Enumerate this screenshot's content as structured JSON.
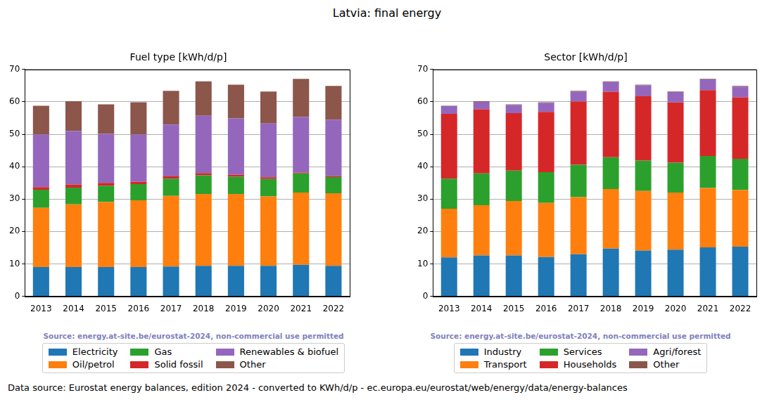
{
  "title": "Latvia: final energy",
  "footer": "Data source: Eurostat energy balances, edition 2024 - converted to KWh/d/p - ec.europa.eu/eurostat/web/energy/data/energy-balances",
  "chart_data": [
    {
      "type": "bar",
      "title": "Fuel type [kWh/d/p]",
      "annotation": "Source: energy.at-site.be/eurostat-2024, non-commercial use permitted",
      "categories": [
        "2013",
        "2014",
        "2015",
        "2016",
        "2017",
        "2018",
        "2019",
        "2020",
        "2021",
        "2022"
      ],
      "series": [
        {
          "name": "Electricity",
          "color": "#1f77b4",
          "values": [
            9.0,
            9.0,
            9.0,
            9.0,
            9.2,
            9.4,
            9.4,
            9.4,
            9.7,
            9.4
          ]
        },
        {
          "name": "Oil/petrol",
          "color": "#ff7f0e",
          "values": [
            18.3,
            19.4,
            20.1,
            20.6,
            21.8,
            22.2,
            22.2,
            21.4,
            22.3,
            22.4
          ]
        },
        {
          "name": "Gas",
          "color": "#2ca02c",
          "values": [
            5.6,
            5.1,
            5.0,
            5.0,
            5.3,
            5.7,
            5.3,
            5.4,
            5.9,
            5.0
          ]
        },
        {
          "name": "Solid fossil",
          "color": "#d62728",
          "values": [
            0.8,
            1.0,
            0.9,
            0.7,
            0.7,
            0.7,
            0.6,
            0.5,
            0.3,
            0.3
          ]
        },
        {
          "name": "Renewables & biofuel",
          "color": "#9467bd",
          "values": [
            16.2,
            16.5,
            15.1,
            14.6,
            16.0,
            17.7,
            17.4,
            16.6,
            17.1,
            17.4
          ]
        },
        {
          "name": "Other",
          "color": "#8c564b",
          "values": [
            8.9,
            9.2,
            9.1,
            10.0,
            10.4,
            10.6,
            10.4,
            9.9,
            11.8,
            10.4
          ]
        }
      ],
      "ylim": [
        0,
        70
      ],
      "yticks": [
        0,
        10,
        20,
        30,
        40,
        50,
        60,
        70
      ],
      "grid": "y",
      "stacked": true,
      "legend": "bottom"
    },
    {
      "type": "bar",
      "title": "Sector [kWh/d/p]",
      "annotation": "Source: energy.at-site.be/eurostat-2024, non-commercial use permitted",
      "categories": [
        "2013",
        "2014",
        "2015",
        "2016",
        "2017",
        "2018",
        "2019",
        "2020",
        "2021",
        "2022"
      ],
      "series": [
        {
          "name": "Industry",
          "color": "#1f77b4",
          "values": [
            12.0,
            12.6,
            12.6,
            12.1,
            13.0,
            14.7,
            14.1,
            14.4,
            15.1,
            15.3
          ]
        },
        {
          "name": "Transport",
          "color": "#ff7f0e",
          "values": [
            15.0,
            15.5,
            16.8,
            16.7,
            17.6,
            18.4,
            18.4,
            17.6,
            18.3,
            17.5
          ]
        },
        {
          "name": "Services",
          "color": "#2ca02c",
          "values": [
            9.3,
            9.8,
            9.4,
            9.5,
            10.0,
            9.8,
            9.4,
            9.2,
            9.9,
            9.6
          ]
        },
        {
          "name": "Households",
          "color": "#d62728",
          "values": [
            20.0,
            19.8,
            17.7,
            18.6,
            19.5,
            20.2,
            19.8,
            18.6,
            20.3,
            19.0
          ]
        },
        {
          "name": "Agri/forest",
          "color": "#9467bd",
          "values": [
            2.4,
            2.3,
            2.5,
            2.8,
            3.1,
            3.0,
            3.4,
            3.2,
            3.3,
            3.3
          ]
        },
        {
          "name": "Other",
          "color": "#8c564b",
          "values": [
            0.1,
            0.2,
            0.2,
            0.2,
            0.2,
            0.2,
            0.2,
            0.2,
            0.2,
            0.2
          ]
        }
      ],
      "ylim": [
        0,
        70
      ],
      "yticks": [
        0,
        10,
        20,
        30,
        40,
        50,
        60,
        70
      ],
      "grid": "y",
      "stacked": true,
      "legend": "bottom"
    }
  ]
}
